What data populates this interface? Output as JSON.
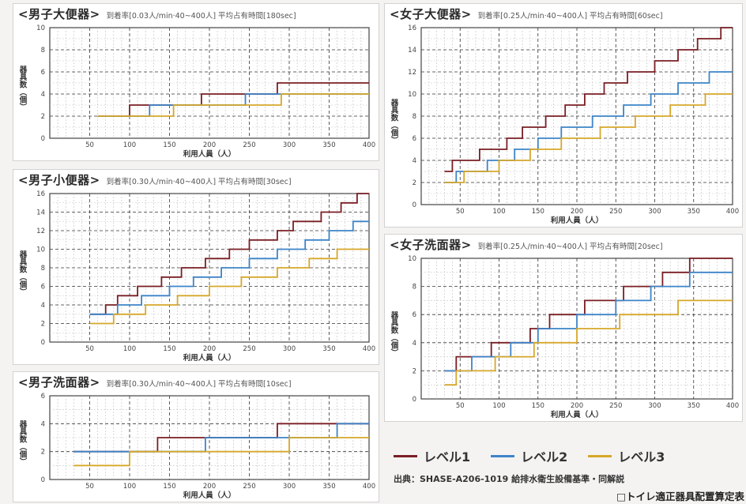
{
  "colors": {
    "level1": "#7a1e24",
    "level2": "#3d84c8",
    "level3": "#d6a72a"
  },
  "legend": {
    "items": [
      {
        "label": "レベル1",
        "color": "#7a1e24"
      },
      {
        "label": "レベル2",
        "color": "#3d84c8"
      },
      {
        "label": "レベル3",
        "color": "#d6a72a"
      }
    ]
  },
  "source": "出典：SHASE-A206-1019 給排水衛生設備基準・同解説",
  "footer_title": "□トイレ適正器具配置算定表",
  "chart_data": [
    {
      "type": "line",
      "title": "<男子大便器>",
      "params": "到着率[0.03人/min·40~400人]  平均占有時間[180sec]",
      "xlabel": "利用人員（人）",
      "ylabel": "器具数（個）",
      "xlim": [
        0,
        400
      ],
      "ylim": [
        0,
        10
      ],
      "xticks": [
        50,
        100,
        150,
        200,
        250,
        300,
        350,
        400
      ],
      "yticks": [
        0,
        2,
        4,
        6,
        8,
        10
      ],
      "series": [
        {
          "name": "レベル1",
          "points": [
            [
              60,
              2
            ],
            [
              100,
              2
            ],
            [
              100,
              3
            ],
            [
              190,
              3
            ],
            [
              190,
              4
            ],
            [
              285,
              4
            ],
            [
              285,
              5
            ],
            [
              400,
              5
            ]
          ]
        },
        {
          "name": "レベル2",
          "points": [
            [
              60,
              2
            ],
            [
              125,
              2
            ],
            [
              125,
              3
            ],
            [
              245,
              3
            ],
            [
              245,
              4
            ],
            [
              400,
              4
            ]
          ]
        },
        {
          "name": "レベル3",
          "points": [
            [
              60,
              2
            ],
            [
              155,
              2
            ],
            [
              155,
              3
            ],
            [
              290,
              3
            ],
            [
              290,
              4
            ],
            [
              400,
              4
            ]
          ]
        }
      ]
    },
    {
      "type": "line",
      "title": "<男子小便器>",
      "params": "到着率[0.30人/min·40~400人]  平均占有時間[30sec]",
      "xlabel": "利用人員（人）",
      "ylabel": "器具数（個）",
      "xlim": [
        0,
        400
      ],
      "ylim": [
        0,
        16
      ],
      "xticks": [
        50,
        100,
        150,
        200,
        250,
        300,
        350,
        400
      ],
      "yticks": [
        0,
        2,
        4,
        6,
        8,
        10,
        12,
        14,
        16
      ],
      "series": [
        {
          "name": "レベル1",
          "points": [
            [
              50,
              3
            ],
            [
              70,
              3
            ],
            [
              70,
              4
            ],
            [
              85,
              4
            ],
            [
              85,
              5
            ],
            [
              110,
              5
            ],
            [
              110,
              6
            ],
            [
              140,
              6
            ],
            [
              140,
              7
            ],
            [
              165,
              7
            ],
            [
              165,
              8
            ],
            [
              195,
              8
            ],
            [
              195,
              9
            ],
            [
              225,
              9
            ],
            [
              225,
              10
            ],
            [
              250,
              10
            ],
            [
              250,
              11
            ],
            [
              285,
              11
            ],
            [
              285,
              12
            ],
            [
              305,
              12
            ],
            [
              305,
              13
            ],
            [
              340,
              13
            ],
            [
              340,
              14
            ],
            [
              365,
              14
            ],
            [
              365,
              15
            ],
            [
              385,
              15
            ],
            [
              385,
              16
            ],
            [
              400,
              16
            ]
          ]
        },
        {
          "name": "レベル2",
          "points": [
            [
              50,
              3
            ],
            [
              85,
              3
            ],
            [
              85,
              4
            ],
            [
              115,
              4
            ],
            [
              115,
              5
            ],
            [
              150,
              5
            ],
            [
              150,
              6
            ],
            [
              180,
              6
            ],
            [
              180,
              7
            ],
            [
              215,
              7
            ],
            [
              215,
              8
            ],
            [
              250,
              8
            ],
            [
              250,
              9
            ],
            [
              285,
              9
            ],
            [
              285,
              10
            ],
            [
              320,
              10
            ],
            [
              320,
              11
            ],
            [
              350,
              11
            ],
            [
              350,
              12
            ],
            [
              380,
              12
            ],
            [
              380,
              13
            ],
            [
              400,
              13
            ]
          ]
        },
        {
          "name": "レベル3",
          "points": [
            [
              50,
              2
            ],
            [
              80,
              2
            ],
            [
              80,
              3
            ],
            [
              120,
              3
            ],
            [
              120,
              4
            ],
            [
              160,
              4
            ],
            [
              160,
              5
            ],
            [
              200,
              5
            ],
            [
              200,
              6
            ],
            [
              240,
              6
            ],
            [
              240,
              7
            ],
            [
              285,
              7
            ],
            [
              285,
              8
            ],
            [
              325,
              8
            ],
            [
              325,
              9
            ],
            [
              360,
              9
            ],
            [
              360,
              10
            ],
            [
              400,
              10
            ]
          ]
        }
      ]
    },
    {
      "type": "line",
      "title": "<男子洗面器>",
      "params": "到着率[0.30人/min·40~400人]  平均占有時間[10sec]",
      "xlabel": "利用人員（人）",
      "ylabel": "器具数（個）",
      "xlim": [
        0,
        400
      ],
      "ylim": [
        0,
        6
      ],
      "xticks": [
        50,
        100,
        150,
        200,
        250,
        300,
        350,
        400
      ],
      "yticks": [
        0,
        2,
        4,
        6
      ],
      "series": [
        {
          "name": "レベル1",
          "points": [
            [
              30,
              2
            ],
            [
              135,
              2
            ],
            [
              135,
              3
            ],
            [
              285,
              3
            ],
            [
              285,
              4
            ],
            [
              400,
              4
            ]
          ]
        },
        {
          "name": "レベル2",
          "points": [
            [
              30,
              2
            ],
            [
              70,
              2
            ],
            [
              70,
              2
            ],
            [
              195,
              2
            ],
            [
              195,
              3
            ],
            [
              360,
              3
            ],
            [
              360,
              4
            ],
            [
              400,
              4
            ]
          ]
        },
        {
          "name": "レベル3",
          "points": [
            [
              30,
              1
            ],
            [
              100,
              1
            ],
            [
              100,
              2
            ],
            [
              300,
              2
            ],
            [
              300,
              3
            ],
            [
              400,
              3
            ]
          ]
        }
      ]
    },
    {
      "type": "line",
      "title": "<女子大便器>",
      "params": "到着率[0.25人/min·40~400人]  平均占有時間[60sec]",
      "xlabel": "利用人員（人）",
      "ylabel": "器具数（個）",
      "xlim": [
        0,
        400
      ],
      "ylim": [
        0,
        16
      ],
      "xticks": [
        50,
        100,
        150,
        200,
        250,
        300,
        350,
        400
      ],
      "yticks": [
        0,
        2,
        4,
        6,
        8,
        10,
        12,
        14,
        16
      ],
      "series": [
        {
          "name": "レベル1",
          "points": [
            [
              30,
              3
            ],
            [
              40,
              3
            ],
            [
              40,
              4
            ],
            [
              75,
              4
            ],
            [
              75,
              5
            ],
            [
              110,
              5
            ],
            [
              110,
              6
            ],
            [
              130,
              6
            ],
            [
              130,
              7
            ],
            [
              160,
              7
            ],
            [
              160,
              8
            ],
            [
              185,
              8
            ],
            [
              185,
              9
            ],
            [
              210,
              9
            ],
            [
              210,
              10
            ],
            [
              235,
              10
            ],
            [
              235,
              11
            ],
            [
              265,
              11
            ],
            [
              265,
              12
            ],
            [
              300,
              12
            ],
            [
              300,
              13
            ],
            [
              330,
              13
            ],
            [
              330,
              14
            ],
            [
              355,
              14
            ],
            [
              355,
              15
            ],
            [
              385,
              15
            ],
            [
              385,
              16
            ],
            [
              400,
              16
            ]
          ]
        },
        {
          "name": "レベル2",
          "points": [
            [
              30,
              2
            ],
            [
              45,
              2
            ],
            [
              45,
              3
            ],
            [
              85,
              3
            ],
            [
              85,
              4
            ],
            [
              120,
              4
            ],
            [
              120,
              5
            ],
            [
              150,
              5
            ],
            [
              150,
              6
            ],
            [
              180,
              6
            ],
            [
              180,
              7
            ],
            [
              220,
              7
            ],
            [
              220,
              8
            ],
            [
              260,
              8
            ],
            [
              260,
              9
            ],
            [
              295,
              9
            ],
            [
              295,
              10
            ],
            [
              330,
              10
            ],
            [
              330,
              11
            ],
            [
              370,
              11
            ],
            [
              370,
              12
            ],
            [
              400,
              12
            ]
          ]
        },
        {
          "name": "レベル3",
          "points": [
            [
              30,
              2
            ],
            [
              55,
              2
            ],
            [
              55,
              3
            ],
            [
              100,
              3
            ],
            [
              100,
              4
            ],
            [
              140,
              4
            ],
            [
              140,
              5
            ],
            [
              180,
              5
            ],
            [
              180,
              6
            ],
            [
              230,
              6
            ],
            [
              230,
              7
            ],
            [
              275,
              7
            ],
            [
              275,
              8
            ],
            [
              320,
              8
            ],
            [
              320,
              9
            ],
            [
              365,
              9
            ],
            [
              365,
              10
            ],
            [
              400,
              10
            ]
          ]
        }
      ]
    },
    {
      "type": "line",
      "title": "<女子洗面器>",
      "params": "到着率[0.25人/min·40~400人]  平均占有時間[20sec]",
      "xlabel": "利用人員（人）",
      "ylabel": "器具数（個）",
      "xlim": [
        0,
        400
      ],
      "ylim": [
        0,
        10
      ],
      "xticks": [
        50,
        100,
        150,
        200,
        250,
        300,
        350,
        400
      ],
      "yticks": [
        0,
        2,
        4,
        6,
        8,
        10
      ],
      "series": [
        {
          "name": "レベル1",
          "points": [
            [
              30,
              2
            ],
            [
              45,
              2
            ],
            [
              45,
              3
            ],
            [
              90,
              3
            ],
            [
              90,
              4
            ],
            [
              140,
              4
            ],
            [
              140,
              5
            ],
            [
              165,
              5
            ],
            [
              165,
              6
            ],
            [
              210,
              6
            ],
            [
              210,
              7
            ],
            [
              260,
              7
            ],
            [
              260,
              8
            ],
            [
              310,
              8
            ],
            [
              310,
              9
            ],
            [
              345,
              9
            ],
            [
              345,
              10
            ],
            [
              400,
              10
            ]
          ]
        },
        {
          "name": "レベル2",
          "points": [
            [
              30,
              2
            ],
            [
              65,
              2
            ],
            [
              65,
              3
            ],
            [
              115,
              3
            ],
            [
              115,
              4
            ],
            [
              150,
              4
            ],
            [
              150,
              5
            ],
            [
              200,
              5
            ],
            [
              200,
              6
            ],
            [
              250,
              6
            ],
            [
              250,
              7
            ],
            [
              295,
              7
            ],
            [
              295,
              8
            ],
            [
              345,
              8
            ],
            [
              345,
              9
            ],
            [
              400,
              9
            ]
          ]
        },
        {
          "name": "レベル3",
          "points": [
            [
              30,
              1
            ],
            [
              45,
              1
            ],
            [
              45,
              2
            ],
            [
              95,
              2
            ],
            [
              95,
              3
            ],
            [
              145,
              3
            ],
            [
              145,
              4
            ],
            [
              200,
              4
            ],
            [
              200,
              5
            ],
            [
              255,
              5
            ],
            [
              255,
              6
            ],
            [
              330,
              6
            ],
            [
              330,
              7
            ],
            [
              400,
              7
            ]
          ]
        }
      ]
    }
  ]
}
